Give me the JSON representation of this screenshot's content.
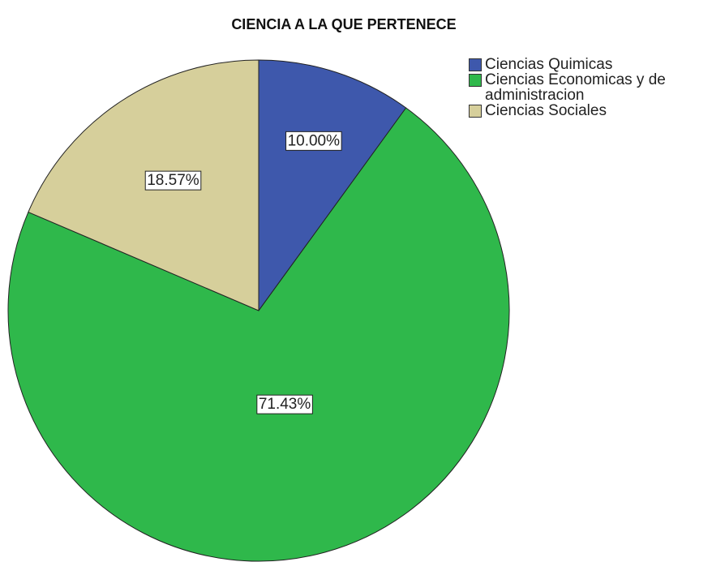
{
  "chart_data": {
    "type": "pie",
    "title": "CIENCIA A LA QUE PERTENECE",
    "categories": [
      "Ciencias Quimicas",
      "Ciencias Economicas y de administracion",
      "Ciencias Sociales"
    ],
    "values": [
      10,
      71.43,
      18.57
    ],
    "value_labels": [
      "10.00%",
      "71.43%",
      "18.57%"
    ],
    "colors": [
      "#3e58ac",
      "#2fb84b",
      "#d6cf9b"
    ],
    "legend": "right"
  }
}
